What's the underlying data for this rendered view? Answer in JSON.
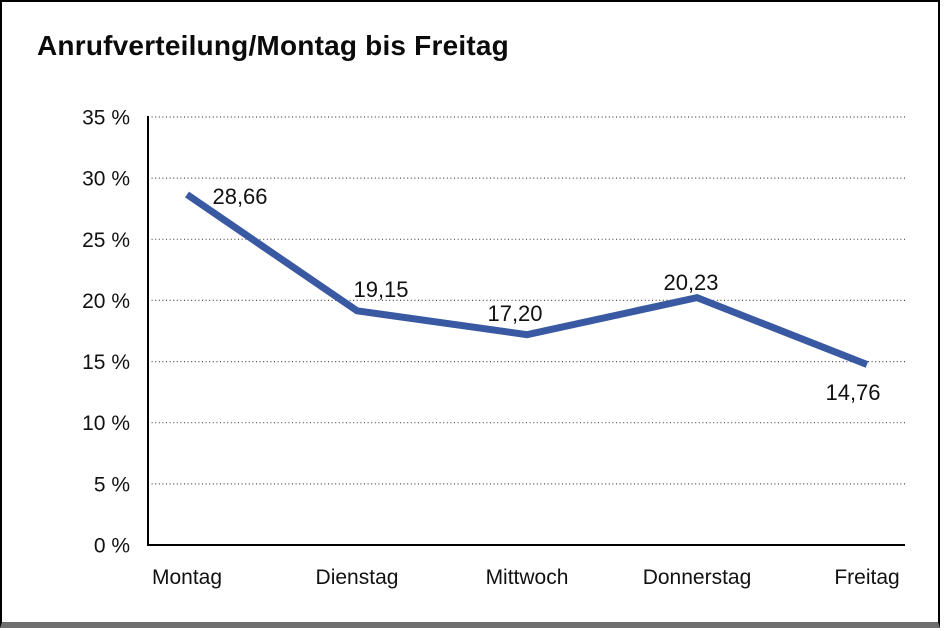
{
  "title": "Anrufverteilung/Montag bis Freitag",
  "frame": {
    "border_color": "#000000",
    "bottom_shadow_color": "#6e6e6e",
    "background": "#ffffff"
  },
  "chart_data": {
    "type": "line",
    "title": "Anrufverteilung/Montag bis Freitag",
    "categories": [
      "Montag",
      "Dienstag",
      "Mittwoch",
      "Donnerstag",
      "Freitag"
    ],
    "values": [
      28.66,
      19.15,
      17.2,
      20.23,
      14.76
    ],
    "value_labels": [
      "28,66",
      "19,15",
      "17,20",
      "20,23",
      "14,76"
    ],
    "unit": "%",
    "y_ticks": [
      0,
      5,
      10,
      15,
      20,
      25,
      30,
      35
    ],
    "y_tick_labels": [
      "0 %",
      "5 %",
      "10 %",
      "15 %",
      "20 %",
      "25 %",
      "30 %",
      "35 %"
    ],
    "ylim": [
      0,
      35
    ],
    "xlabel": "",
    "ylabel": "",
    "grid": "horizontal-dotted",
    "legend": "none",
    "line_color": "#3A59A3"
  }
}
